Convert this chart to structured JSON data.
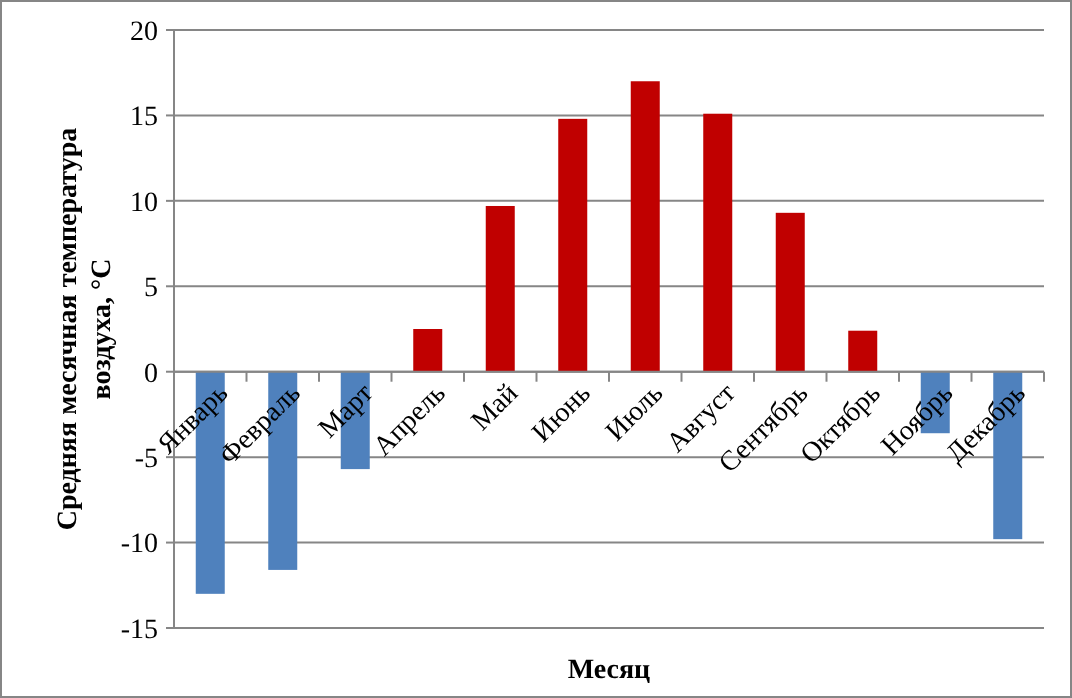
{
  "chart_data": {
    "type": "bar",
    "xlabel": "Месяц",
    "ylabel": "Средняя месячная температура\nвоздуха, °С",
    "categories": [
      "Январь",
      "Февраль",
      "Март",
      "Апрель",
      "Май",
      "Июнь",
      "Июль",
      "Август",
      "Сентябрь",
      "Октябрь",
      "Ноябрь",
      "Декабрь"
    ],
    "values": [
      -13.0,
      -11.6,
      -5.7,
      2.5,
      9.7,
      14.8,
      17.0,
      15.1,
      9.3,
      2.4,
      -3.6,
      -9.8
    ],
    "colors": [
      "#4f81bd",
      "#4f81bd",
      "#4f81bd",
      "#c00000",
      "#c00000",
      "#c00000",
      "#c00000",
      "#c00000",
      "#c00000",
      "#c00000",
      "#4f81bd",
      "#4f81bd"
    ],
    "ylim": [
      -15,
      20
    ],
    "yticks": [
      -15,
      -10,
      -5,
      0,
      5,
      10,
      15,
      20
    ],
    "grid": "y"
  }
}
